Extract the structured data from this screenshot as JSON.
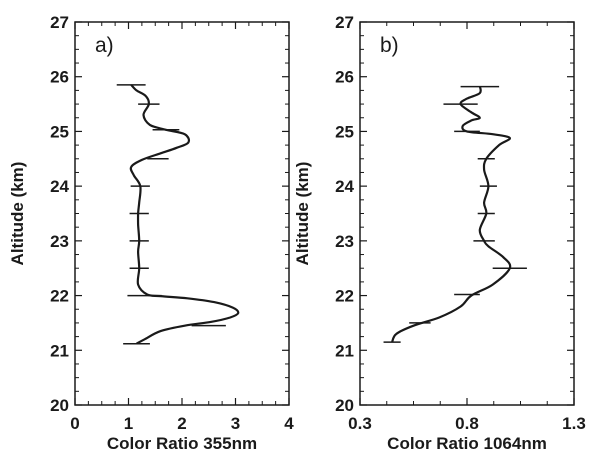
{
  "chart_data": [
    {
      "type": "line",
      "panel_label": "a)",
      "xlabel": "Color Ratio 355nm",
      "ylabel": "Altitude (km)",
      "xlim": [
        0,
        4
      ],
      "ylim": [
        20,
        27
      ],
      "x_ticks": [
        "0",
        "1",
        "2",
        "3",
        "4"
      ],
      "y_ticks": [
        "20",
        "21",
        "22",
        "23",
        "24",
        "25",
        "26",
        "27"
      ],
      "series": [
        {
          "points": [
            [
              1.15,
              21.12
            ],
            [
              1.3,
              21.2
            ],
            [
              1.6,
              21.35
            ],
            [
              2.05,
              21.45
            ],
            [
              2.55,
              21.52
            ],
            [
              2.9,
              21.6
            ],
            [
              3.05,
              21.68
            ],
            [
              2.95,
              21.78
            ],
            [
              2.6,
              21.88
            ],
            [
              2.1,
              21.95
            ],
            [
              1.6,
              21.99
            ],
            [
              1.35,
              22.02
            ],
            [
              1.18,
              22.2
            ],
            [
              1.2,
              22.5
            ],
            [
              1.18,
              22.8
            ],
            [
              1.2,
              23.0
            ],
            [
              1.18,
              23.3
            ],
            [
              1.18,
              23.5
            ],
            [
              1.2,
              23.7
            ],
            [
              1.22,
              24.0
            ],
            [
              1.1,
              24.2
            ],
            [
              1.05,
              24.35
            ],
            [
              1.25,
              24.48
            ],
            [
              1.6,
              24.6
            ],
            [
              1.9,
              24.7
            ],
            [
              2.12,
              24.8
            ],
            [
              2.05,
              24.95
            ],
            [
              1.7,
              25.03
            ],
            [
              1.4,
              25.12
            ],
            [
              1.28,
              25.3
            ],
            [
              1.38,
              25.5
            ],
            [
              1.32,
              25.65
            ],
            [
              1.15,
              25.75
            ],
            [
              1.05,
              25.85
            ]
          ],
          "error_bars": [
            {
              "y": 21.12,
              "center": 1.15,
              "halfwidth": 0.25
            },
            {
              "y": 21.45,
              "center": 2.5,
              "halfwidth": 0.32
            },
            {
              "y": 22.0,
              "center": 1.3,
              "halfwidth": 0.32
            },
            {
              "y": 22.5,
              "center": 1.2,
              "halfwidth": 0.18
            },
            {
              "y": 23.0,
              "center": 1.2,
              "halfwidth": 0.18
            },
            {
              "y": 23.5,
              "center": 1.2,
              "halfwidth": 0.18
            },
            {
              "y": 24.0,
              "center": 1.22,
              "halfwidth": 0.18
            },
            {
              "y": 24.5,
              "center": 1.55,
              "halfwidth": 0.2
            },
            {
              "y": 25.03,
              "center": 1.7,
              "halfwidth": 0.25
            },
            {
              "y": 25.5,
              "center": 1.38,
              "halfwidth": 0.2
            },
            {
              "y": 25.85,
              "center": 1.05,
              "halfwidth": 0.27
            }
          ]
        }
      ]
    },
    {
      "type": "line",
      "panel_label": "b)",
      "xlabel": "Color Ratio 1064nm",
      "ylabel": "Altitude (km)",
      "xlim": [
        0.3,
        1.3
      ],
      "ylim": [
        20,
        27
      ],
      "x_ticks": [
        "0.3",
        "0.8",
        "1.3"
      ],
      "y_ticks": [
        "20",
        "21",
        "22",
        "23",
        "24",
        "25",
        "26",
        "27"
      ],
      "series": [
        {
          "points": [
            [
              0.45,
              21.15
            ],
            [
              0.47,
              21.3
            ],
            [
              0.55,
              21.45
            ],
            [
              0.67,
              21.6
            ],
            [
              0.77,
              21.8
            ],
            [
              0.82,
              22.0
            ],
            [
              0.92,
              22.2
            ],
            [
              1.0,
              22.5
            ],
            [
              0.97,
              22.7
            ],
            [
              0.9,
              22.9
            ],
            [
              0.88,
              23.0
            ],
            [
              0.86,
              23.2
            ],
            [
              0.89,
              23.5
            ],
            [
              0.88,
              23.7
            ],
            [
              0.9,
              24.0
            ],
            [
              0.88,
              24.3
            ],
            [
              0.89,
              24.5
            ],
            [
              0.95,
              24.75
            ],
            [
              1.0,
              24.88
            ],
            [
              0.92,
              24.95
            ],
            [
              0.8,
              25.0
            ],
            [
              0.78,
              25.1
            ],
            [
              0.82,
              25.2
            ],
            [
              0.86,
              25.25
            ],
            [
              0.82,
              25.35
            ],
            [
              0.77,
              25.5
            ],
            [
              0.8,
              25.6
            ],
            [
              0.86,
              25.7
            ],
            [
              0.86,
              25.83
            ]
          ],
          "error_bars": [
            {
              "y": 21.15,
              "center": 0.45,
              "halfwidth": 0.04
            },
            {
              "y": 21.5,
              "center": 0.58,
              "halfwidth": 0.05
            },
            {
              "y": 22.02,
              "center": 0.8,
              "halfwidth": 0.06
            },
            {
              "y": 22.5,
              "center": 1.0,
              "halfwidth": 0.08
            },
            {
              "y": 23.0,
              "center": 0.88,
              "halfwidth": 0.05
            },
            {
              "y": 23.5,
              "center": 0.89,
              "halfwidth": 0.04
            },
            {
              "y": 24.0,
              "center": 0.9,
              "halfwidth": 0.04
            },
            {
              "y": 24.5,
              "center": 0.89,
              "halfwidth": 0.04
            },
            {
              "y": 25.0,
              "center": 0.8,
              "halfwidth": 0.06
            },
            {
              "y": 25.5,
              "center": 0.77,
              "halfwidth": 0.08
            },
            {
              "y": 25.82,
              "center": 0.86,
              "halfwidth": 0.09
            }
          ]
        }
      ]
    }
  ]
}
